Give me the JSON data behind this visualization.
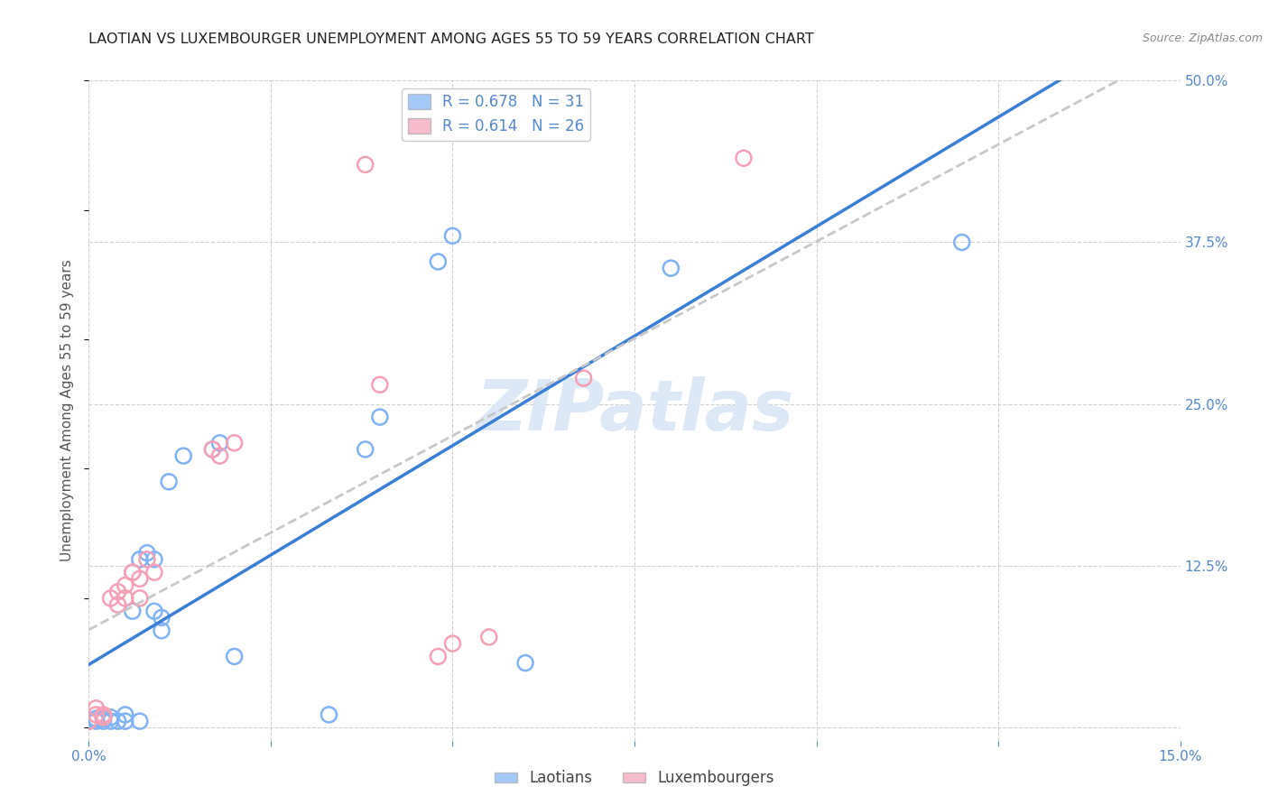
{
  "title": "LAOTIAN VS LUXEMBOURGER UNEMPLOYMENT AMONG AGES 55 TO 59 YEARS CORRELATION CHART",
  "source": "Source: ZipAtlas.com",
  "ylabel": "Unemployment Among Ages 55 to 59 years",
  "xlim": [
    0.0,
    0.15
  ],
  "ylim": [
    -0.01,
    0.5
  ],
  "xticks": [
    0.0,
    0.025,
    0.05,
    0.075,
    0.1,
    0.125,
    0.15
  ],
  "yticks": [
    0.0,
    0.125,
    0.25,
    0.375,
    0.5
  ],
  "laotian_color": "#7fb3f5",
  "luxembourger_color": "#f5a0b5",
  "laotian_R": 0.678,
  "laotian_N": 31,
  "luxembourger_R": 0.614,
  "luxembourger_N": 26,
  "laotian_points": [
    [
      0.0,
      0.005
    ],
    [
      0.001,
      0.005
    ],
    [
      0.001,
      0.007
    ],
    [
      0.002,
      0.005
    ],
    [
      0.002,
      0.007
    ],
    [
      0.003,
      0.005
    ],
    [
      0.003,
      0.008
    ],
    [
      0.004,
      0.005
    ],
    [
      0.005,
      0.005
    ],
    [
      0.005,
      0.01
    ],
    [
      0.006,
      0.09
    ],
    [
      0.007,
      0.13
    ],
    [
      0.008,
      0.135
    ],
    [
      0.009,
      0.09
    ],
    [
      0.009,
      0.13
    ],
    [
      0.01,
      0.075
    ],
    [
      0.01,
      0.085
    ],
    [
      0.011,
      0.19
    ],
    [
      0.013,
      0.21
    ],
    [
      0.017,
      0.215
    ],
    [
      0.018,
      0.22
    ],
    [
      0.02,
      0.055
    ],
    [
      0.033,
      0.01
    ],
    [
      0.038,
      0.215
    ],
    [
      0.04,
      0.24
    ],
    [
      0.048,
      0.36
    ],
    [
      0.05,
      0.38
    ],
    [
      0.06,
      0.05
    ],
    [
      0.08,
      0.355
    ],
    [
      0.12,
      0.375
    ],
    [
      0.007,
      0.005
    ]
  ],
  "luxembourger_points": [
    [
      0.0,
      0.005
    ],
    [
      0.001,
      0.01
    ],
    [
      0.001,
      0.015
    ],
    [
      0.002,
      0.01
    ],
    [
      0.002,
      0.008
    ],
    [
      0.003,
      0.1
    ],
    [
      0.004,
      0.095
    ],
    [
      0.004,
      0.105
    ],
    [
      0.005,
      0.1
    ],
    [
      0.005,
      0.11
    ],
    [
      0.006,
      0.12
    ],
    [
      0.006,
      0.12
    ],
    [
      0.007,
      0.115
    ],
    [
      0.007,
      0.1
    ],
    [
      0.008,
      0.13
    ],
    [
      0.009,
      0.12
    ],
    [
      0.017,
      0.215
    ],
    [
      0.018,
      0.21
    ],
    [
      0.02,
      0.22
    ],
    [
      0.04,
      0.265
    ],
    [
      0.048,
      0.055
    ],
    [
      0.05,
      0.065
    ],
    [
      0.055,
      0.07
    ],
    [
      0.068,
      0.27
    ],
    [
      0.09,
      0.44
    ],
    [
      0.038,
      0.435
    ]
  ],
  "laotian_line_color": "#3a7fd5",
  "luxembourger_line_color": "#c8c8c8",
  "grid_color": "#d0d0d0",
  "watermark_text": "ZIPatlas",
  "watermark_color": "#dce8f5",
  "background_color": "#ffffff",
  "tick_color": "#5588cc",
  "title_fontsize": 11.5,
  "label_fontsize": 11,
  "tick_fontsize": 11,
  "legend_fontsize": 12
}
